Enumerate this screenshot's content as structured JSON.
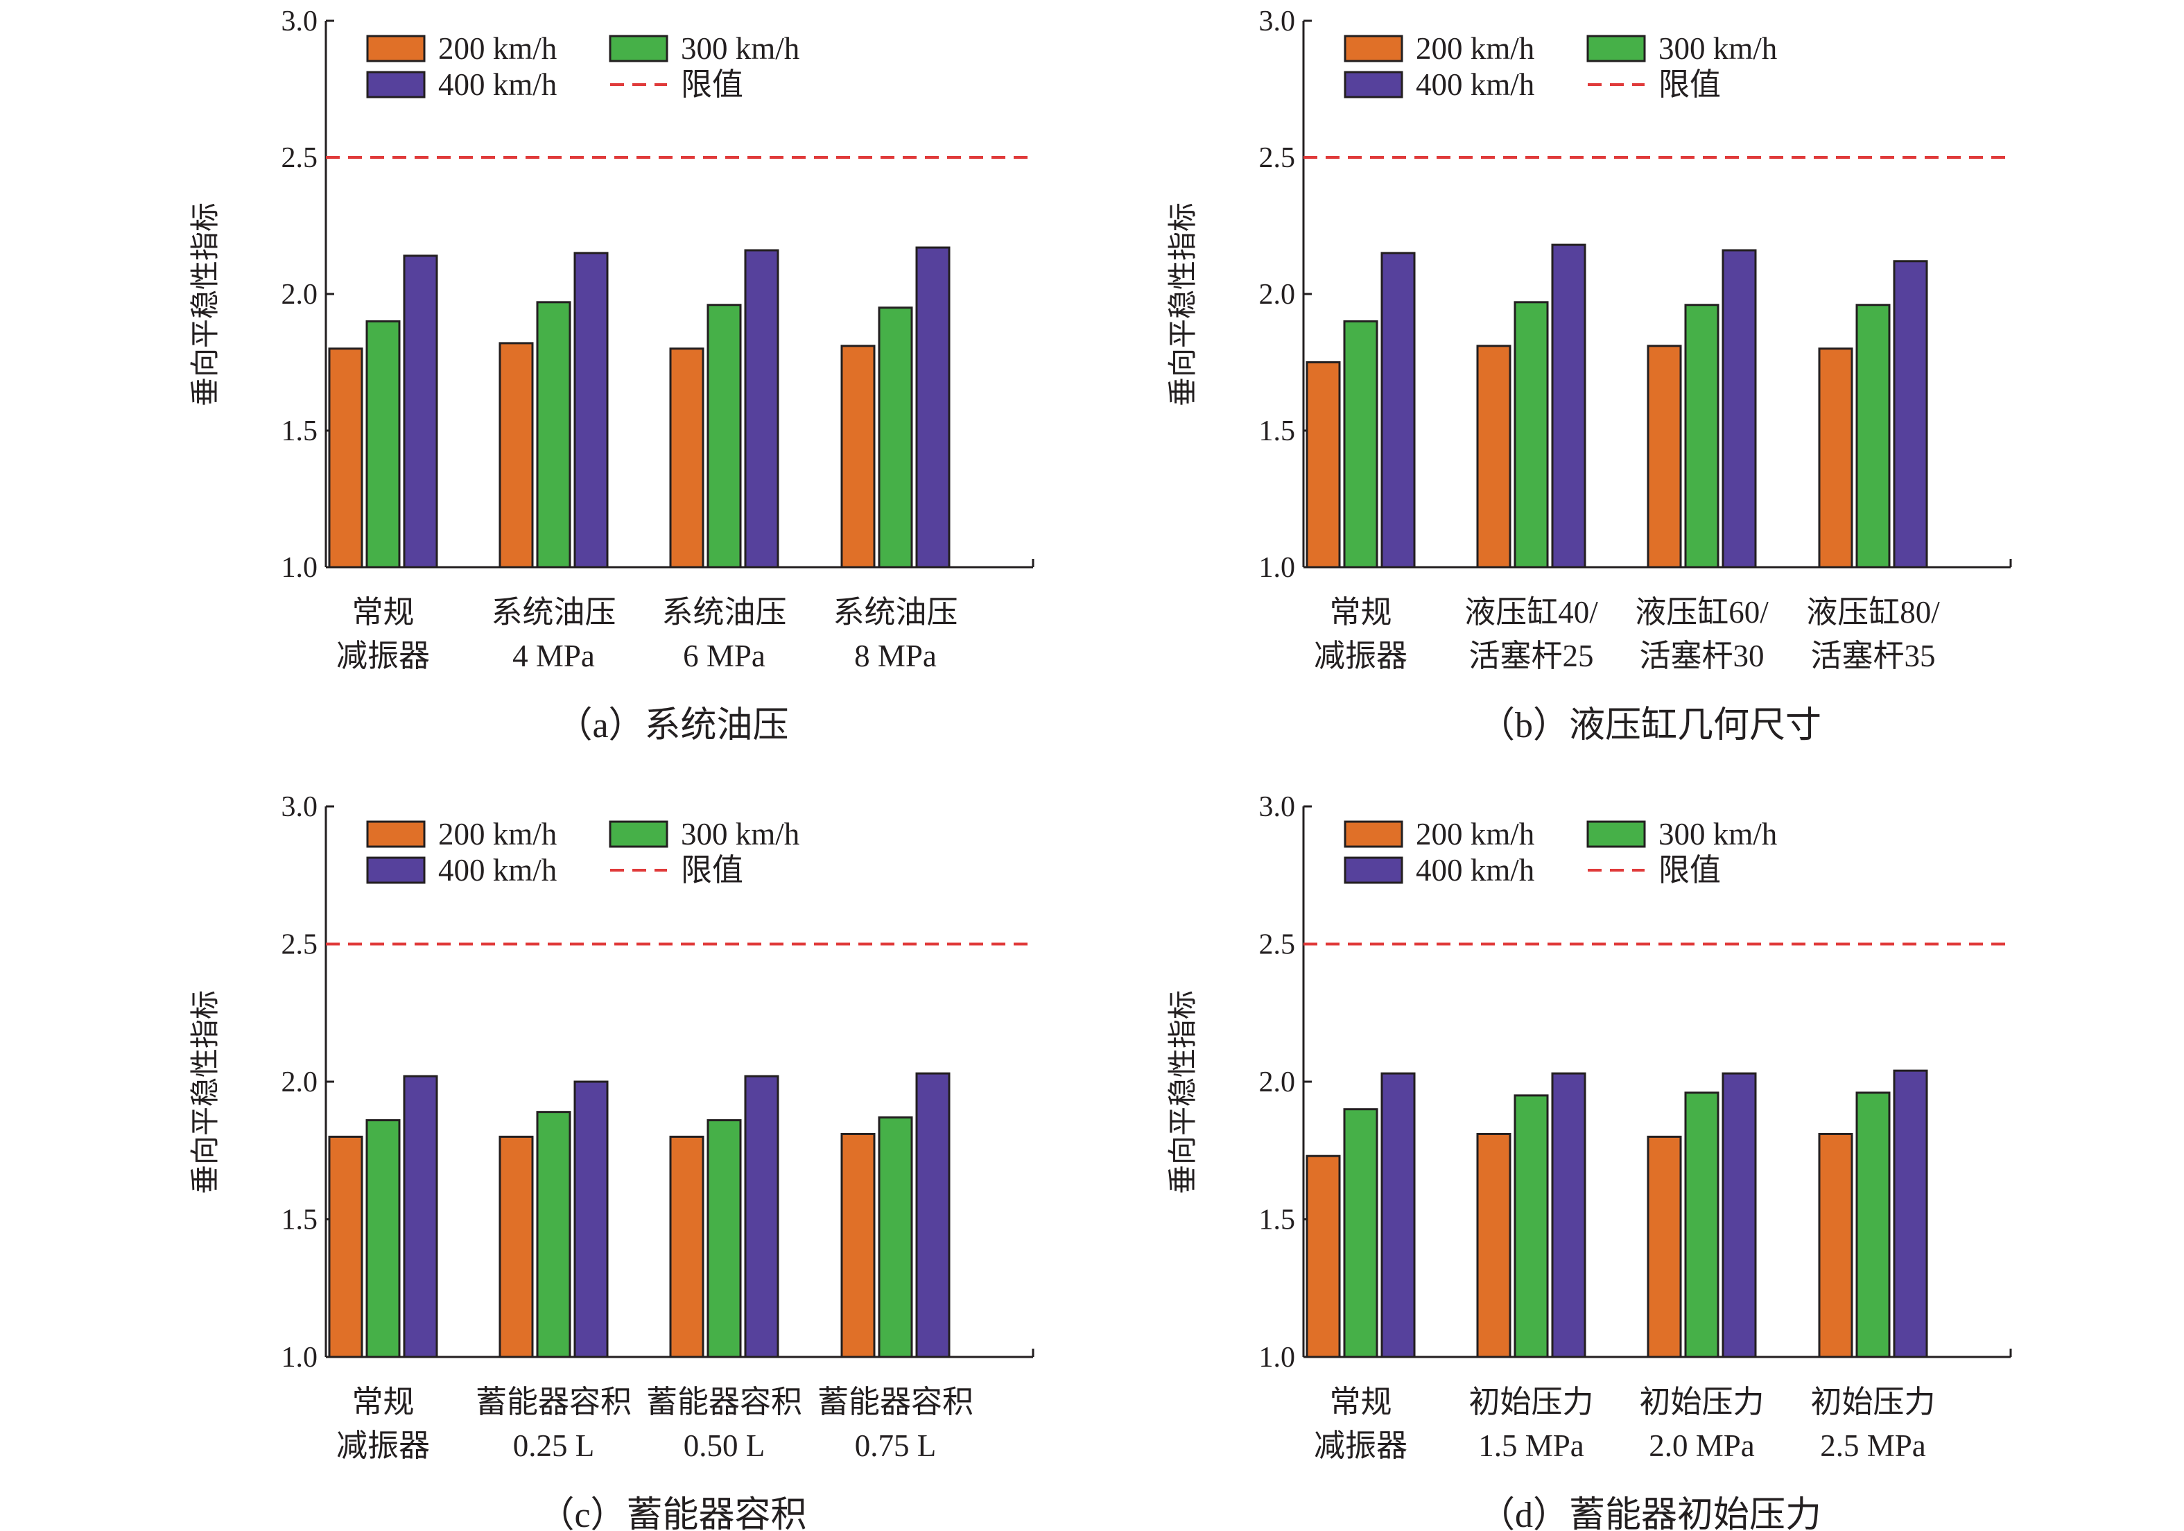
{
  "colors": {
    "s200": "#e07028",
    "s300": "#46b048",
    "s400": "#56419c",
    "limit": "#e03a3a",
    "axis": "#231f20"
  },
  "legend": {
    "s200": "200 km/h",
    "s300": "300 km/h",
    "s400": "400 km/h",
    "limit": "限值"
  },
  "chart_data": [
    {
      "type": "bar",
      "caption": "（a）系统油压",
      "ylabel": "垂向平稳性指标",
      "ylim": [
        1.0,
        3.0
      ],
      "yticks": [
        "1.0",
        "1.5",
        "2.0",
        "2.5",
        "3.0"
      ],
      "limit": 2.5,
      "categories": [
        [
          "常规",
          "减振器"
        ],
        [
          "系统油压",
          "4 MPa"
        ],
        [
          "系统油压",
          "6 MPa"
        ],
        [
          "系统油压",
          "8 MPa"
        ]
      ],
      "series": [
        {
          "name": "200 km/h",
          "values": [
            1.8,
            1.82,
            1.8,
            1.81
          ]
        },
        {
          "name": "300 km/h",
          "values": [
            1.9,
            1.97,
            1.96,
            1.95
          ]
        },
        {
          "name": "400 km/h",
          "values": [
            2.14,
            2.15,
            2.16,
            2.17
          ]
        }
      ]
    },
    {
      "type": "bar",
      "caption": "（b）液压缸几何尺寸",
      "ylabel": "垂向平稳性指标",
      "ylim": [
        1.0,
        3.0
      ],
      "yticks": [
        "1.0",
        "1.5",
        "2.0",
        "2.5",
        "3.0"
      ],
      "limit": 2.5,
      "categories": [
        [
          "常规",
          "减振器"
        ],
        [
          "液压缸40/",
          "活塞杆25"
        ],
        [
          "液压缸60/",
          "活塞杆30"
        ],
        [
          "液压缸80/",
          "活塞杆35"
        ]
      ],
      "series": [
        {
          "name": "200 km/h",
          "values": [
            1.75,
            1.81,
            1.81,
            1.8
          ]
        },
        {
          "name": "300 km/h",
          "values": [
            1.9,
            1.97,
            1.96,
            1.96
          ]
        },
        {
          "name": "400 km/h",
          "values": [
            2.15,
            2.18,
            2.16,
            2.12
          ]
        }
      ]
    },
    {
      "type": "bar",
      "caption": "（c）蓄能器容积",
      "ylabel": "垂向平稳性指标",
      "ylim": [
        1.0,
        3.0
      ],
      "yticks": [
        "1.0",
        "1.5",
        "2.0",
        "2.5",
        "3.0"
      ],
      "limit": 2.5,
      "categories": [
        [
          "常规",
          "减振器"
        ],
        [
          "蓄能器容积",
          "0.25 L"
        ],
        [
          "蓄能器容积",
          "0.50 L"
        ],
        [
          "蓄能器容积",
          "0.75 L"
        ]
      ],
      "series": [
        {
          "name": "200 km/h",
          "values": [
            1.8,
            1.8,
            1.8,
            1.81
          ]
        },
        {
          "name": "300 km/h",
          "values": [
            1.86,
            1.89,
            1.86,
            1.87
          ]
        },
        {
          "name": "400 km/h",
          "values": [
            2.02,
            2.0,
            2.02,
            2.03
          ]
        }
      ]
    },
    {
      "type": "bar",
      "caption": "（d）蓄能器初始压力",
      "ylabel": "垂向平稳性指标",
      "ylim": [
        1.0,
        3.0
      ],
      "yticks": [
        "1.0",
        "1.5",
        "2.0",
        "2.5",
        "3.0"
      ],
      "limit": 2.5,
      "categories": [
        [
          "常规",
          "减振器"
        ],
        [
          "初始压力",
          "1.5 MPa"
        ],
        [
          "初始压力",
          "2.0 MPa"
        ],
        [
          "初始压力",
          "2.5 MPa"
        ]
      ],
      "series": [
        {
          "name": "200 km/h",
          "values": [
            1.73,
            1.81,
            1.8,
            1.81
          ]
        },
        {
          "name": "300 km/h",
          "values": [
            1.9,
            1.95,
            1.96,
            1.96
          ]
        },
        {
          "name": "400 km/h",
          "values": [
            2.03,
            2.03,
            2.03,
            2.04
          ]
        }
      ]
    }
  ]
}
